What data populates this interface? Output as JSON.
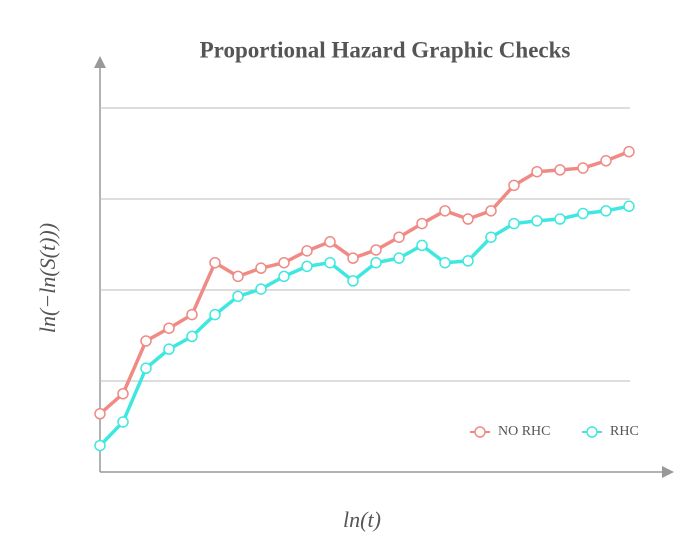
{
  "chart_data": {
    "type": "line",
    "title": "Proportional Hazard Graphic Checks",
    "xlabel": "ln(t)",
    "ylabel": "ln(−ln(S(t)))",
    "x": [
      0,
      1,
      2,
      3,
      4,
      5,
      6,
      7,
      8,
      9,
      10,
      11,
      12,
      13,
      14,
      15,
      16,
      17,
      18,
      19,
      20,
      21,
      22,
      23
    ],
    "xlim": [
      0,
      24.5
    ],
    "ylim": [
      0,
      4.5
    ],
    "yticks": [
      1,
      2,
      3,
      4
    ],
    "grid": true,
    "legend": "lower right",
    "series": [
      {
        "name": "NO RHC",
        "color": "#f08a84",
        "values": [
          0.64,
          0.86,
          1.44,
          1.58,
          1.73,
          2.3,
          2.15,
          2.24,
          2.3,
          2.43,
          2.53,
          2.35,
          2.44,
          2.58,
          2.73,
          2.87,
          2.78,
          2.87,
          3.15,
          3.3,
          3.32,
          3.34,
          3.42,
          3.52
        ]
      },
      {
        "name": "RHC",
        "color": "#3ee8e0",
        "values": [
          0.29,
          0.55,
          1.14,
          1.35,
          1.49,
          1.73,
          1.93,
          2.01,
          2.15,
          2.26,
          2.3,
          2.1,
          2.3,
          2.35,
          2.49,
          2.3,
          2.32,
          2.58,
          2.73,
          2.76,
          2.78,
          2.84,
          2.87,
          2.92
        ]
      }
    ]
  }
}
